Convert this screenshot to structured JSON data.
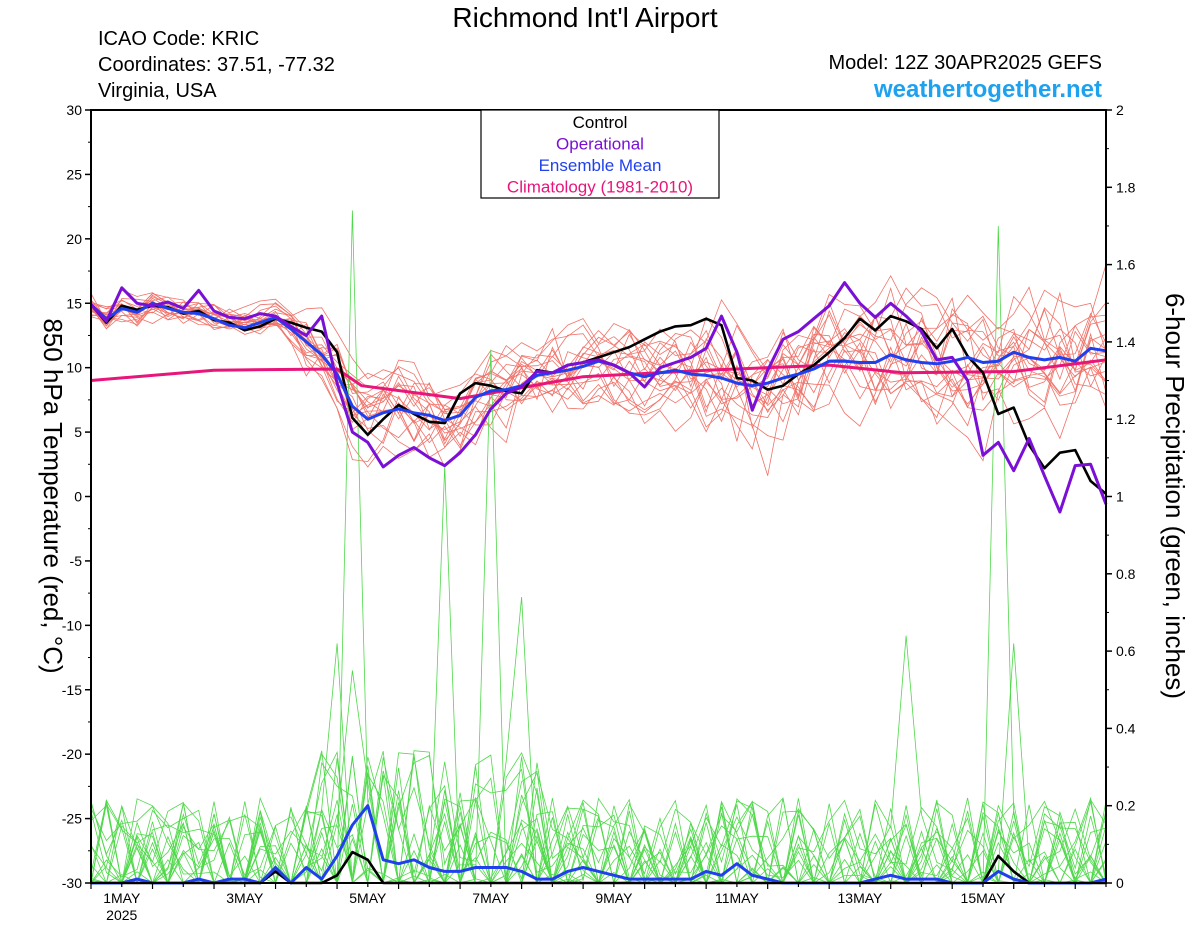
{
  "header": {
    "title": "Richmond Int'l Airport",
    "icao": "ICAO Code: KRIC",
    "coordinates": "Coordinates: 37.51, -77.32",
    "region": "Virginia, USA",
    "model": "Model: 12Z 30APR2025 GEFS",
    "site": "weathertogether.net"
  },
  "colors": {
    "control": "#000000",
    "operational": "#7a10d6",
    "ensemble_mean": "#2040ee",
    "climatology": "#e8157a",
    "members": "#f0736a",
    "precip": "#4fd84a"
  },
  "chart_data": {
    "type": "line",
    "title": "Richmond Int'l Airport",
    "ylabel": "850 hPa Temperature (red, °C)",
    "y2label": "6-hour Precipitation (green, inches)",
    "ylim": [
      -30,
      30
    ],
    "y2lim": [
      0,
      2
    ],
    "yticks": [
      30,
      25,
      20,
      15,
      10,
      5,
      0,
      -5,
      -10,
      -15,
      -20,
      -25,
      -30
    ],
    "y2ticks": [
      "2",
      "1.8",
      "1.6",
      "1.4",
      "1.2",
      "1",
      "0.8",
      "0.6",
      "0.4",
      "0.2",
      "0"
    ],
    "xlim": [
      0,
      16.5
    ],
    "xticks": [
      {
        "x": 0.5,
        "label": "1MAY",
        "sub": "2025"
      },
      {
        "x": 2.5,
        "label": "3MAY"
      },
      {
        "x": 4.5,
        "label": "5MAY"
      },
      {
        "x": 6.5,
        "label": "7MAY"
      },
      {
        "x": 8.5,
        "label": "9MAY"
      },
      {
        "x": 10.5,
        "label": "11MAY"
      },
      {
        "x": 12.5,
        "label": "13MAY"
      },
      {
        "x": 14.5,
        "label": "15MAY"
      }
    ],
    "legend": {
      "placement": "top-center",
      "entries": [
        "Control",
        "Operational",
        "Ensemble Mean",
        "Climatology (1981-2010)"
      ]
    },
    "series": [
      {
        "name": "Control",
        "axis": "temp",
        "step": 0.25,
        "values": [
          14.9,
          13.5,
          14.8,
          14.5,
          14.8,
          14.7,
          14.2,
          14.4,
          13.7,
          13.5,
          12.9,
          13.2,
          13.8,
          13.5,
          13.1,
          12.8,
          11.2,
          6.1,
          4.8,
          6.0,
          7.1,
          6.4,
          5.8,
          5.7,
          8.0,
          8.8,
          8.6,
          8.2,
          8.0,
          9.8,
          9.6,
          10.2,
          10.4,
          10.8,
          11.2,
          11.6,
          12.2,
          12.8,
          13.2,
          13.3,
          13.8,
          13.3,
          9.2,
          9.0,
          8.3,
          8.6,
          9.5,
          10.2,
          11.2,
          12.3,
          13.8,
          12.9,
          14.0,
          13.6,
          13.0,
          11.5,
          13.0,
          10.9,
          9.6,
          6.4,
          6.9,
          4.0,
          2.2,
          3.4,
          3.6,
          1.2,
          0.2
        ]
      },
      {
        "name": "Operational",
        "axis": "temp",
        "step": 0.25,
        "values": [
          14.9,
          13.6,
          16.2,
          15.0,
          14.8,
          15.1,
          14.6,
          16.0,
          14.4,
          13.9,
          13.8,
          14.2,
          14.0,
          13.2,
          12.5,
          14.0,
          8.8,
          5.0,
          4.2,
          2.3,
          3.2,
          3.8,
          3.0,
          2.4,
          3.4,
          4.8,
          6.8,
          8.0,
          8.5,
          9.7,
          9.6,
          10.2,
          10.4,
          10.6,
          10.2,
          9.6,
          8.5,
          10.0,
          10.4,
          10.8,
          11.5,
          14.0,
          11.2,
          6.7,
          9.8,
          12.2,
          12.8,
          13.8,
          14.8,
          16.6,
          15.0,
          13.9,
          15.0,
          14.0,
          12.8,
          10.6,
          10.8,
          9.0,
          3.2,
          4.2,
          2.0,
          4.5,
          1.6,
          -1.2,
          2.4,
          2.5,
          -0.6
        ]
      },
      {
        "name": "Ensemble Mean",
        "axis": "temp",
        "step": 0.25,
        "values": [
          14.9,
          13.8,
          14.6,
          14.3,
          15.0,
          14.6,
          14.3,
          14.2,
          13.8,
          13.3,
          13.1,
          13.5,
          13.9,
          13.0,
          12.0,
          11.0,
          9.5,
          7.0,
          6.0,
          6.5,
          6.8,
          6.5,
          6.3,
          5.9,
          6.3,
          7.7,
          8.2,
          8.3,
          8.6,
          9.4,
          9.6,
          9.8,
          10.1,
          10.5,
          10.2,
          9.6,
          9.3,
          9.6,
          9.8,
          9.5,
          9.4,
          9.2,
          8.8,
          8.6,
          8.8,
          9.2,
          9.5,
          9.9,
          10.5,
          10.5,
          10.4,
          10.4,
          11.0,
          10.6,
          10.4,
          10.3,
          10.5,
          10.8,
          10.4,
          10.5,
          11.2,
          10.8,
          10.6,
          10.8,
          10.5,
          11.5,
          11.3
        ]
      },
      {
        "name": "Climatology (1981-2010)",
        "axis": "temp",
        "step": 0.25,
        "x": [
          0,
          2,
          4,
          4.4,
          6,
          8,
          10,
          12,
          13.2,
          15,
          16.5
        ],
        "values": [
          9.0,
          9.8,
          9.9,
          8.6,
          7.6,
          9.3,
          9.8,
          10.2,
          9.6,
          9.7,
          10.6
        ]
      },
      {
        "name": "Ensemble Mean Precipitation",
        "axis": "precip",
        "step": 0.25,
        "values": [
          0.0,
          0.0,
          0.0,
          0.01,
          0.0,
          0.0,
          0.0,
          0.01,
          0.0,
          0.01,
          0.01,
          0.0,
          0.04,
          0.0,
          0.04,
          0.01,
          0.07,
          0.15,
          0.2,
          0.06,
          0.05,
          0.06,
          0.04,
          0.03,
          0.03,
          0.04,
          0.04,
          0.04,
          0.03,
          0.01,
          0.01,
          0.03,
          0.04,
          0.03,
          0.02,
          0.01,
          0.01,
          0.01,
          0.01,
          0.01,
          0.03,
          0.02,
          0.05,
          0.02,
          0.01,
          0.0,
          0.0,
          0.0,
          0.0,
          0.0,
          0.0,
          0.01,
          0.02,
          0.01,
          0.01,
          0.01,
          0.0,
          0.0,
          0.0,
          0.03,
          0.01,
          0.0,
          0.0,
          0.0,
          0.0,
          0.0,
          0.01
        ]
      },
      {
        "name": "Control Precipitation",
        "axis": "precip",
        "step": 0.25,
        "values": [
          0.0,
          0.0,
          0.0,
          0.0,
          0.0,
          0.0,
          0.0,
          0.0,
          0.0,
          0.0,
          0.0,
          0.0,
          0.03,
          0.0,
          0.0,
          0.0,
          0.02,
          0.08,
          0.06,
          0.0,
          0.0,
          0.0,
          0.0,
          0.0,
          0.0,
          0.0,
          0.0,
          0.0,
          0.0,
          0.0,
          0.0,
          0.0,
          0.0,
          0.0,
          0.0,
          0.0,
          0.0,
          0.0,
          0.0,
          0.0,
          0.0,
          0.0,
          0.0,
          0.0,
          0.0,
          0.0,
          0.0,
          0.0,
          0.0,
          0.0,
          0.0,
          0.0,
          0.0,
          0.0,
          0.0,
          0.0,
          0.0,
          0.0,
          0.0,
          0.07,
          0.03,
          0.0,
          0.0,
          0.0,
          0.0,
          0.0,
          0.0
        ]
      }
    ]
  }
}
